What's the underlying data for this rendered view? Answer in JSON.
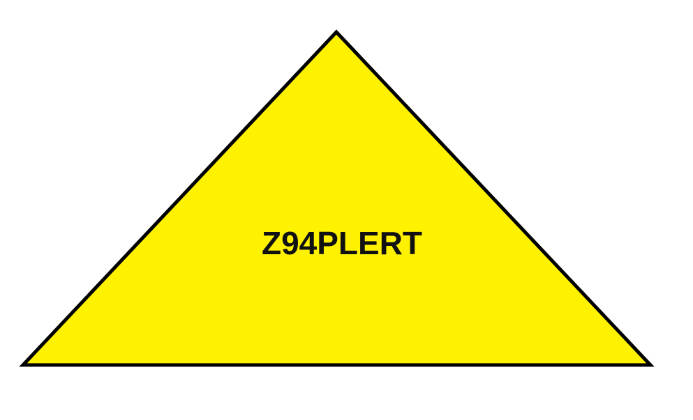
{
  "shape": {
    "kind": "triangle",
    "fill_color": "#FFF200",
    "stroke_color": "#000000"
  },
  "label": {
    "text": "Z94PLERT"
  }
}
